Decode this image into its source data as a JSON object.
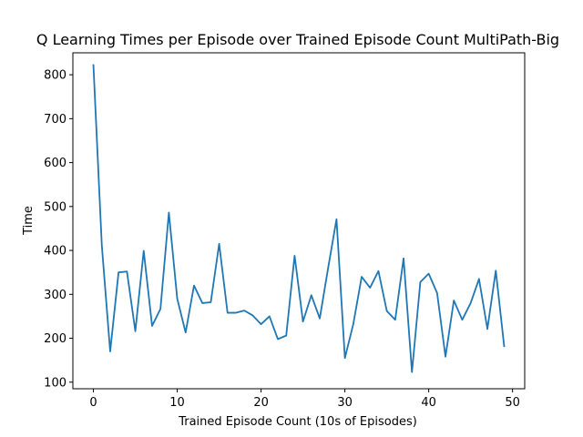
{
  "chart_data": {
    "type": "line",
    "title": "Q Learning Times per Episode over Trained Episode Count MultiPath-Big",
    "xlabel": "Trained Episode Count (10s of Episodes)",
    "ylabel": "Time",
    "xlim": [
      -2.45,
      51.45
    ],
    "ylim": [
      85,
      850
    ],
    "xticks": [
      0,
      10,
      20,
      30,
      40,
      50
    ],
    "yticks": [
      100,
      200,
      300,
      400,
      500,
      600,
      700,
      800
    ],
    "grid": false,
    "legend": "none",
    "series": [
      {
        "color": "#1f77b4",
        "x": [
          0,
          1,
          2,
          3,
          4,
          5,
          6,
          7,
          8,
          9,
          10,
          11,
          12,
          13,
          14,
          15,
          16,
          17,
          18,
          19,
          20,
          21,
          22,
          23,
          24,
          25,
          26,
          27,
          28,
          29,
          30,
          31,
          32,
          33,
          34,
          35,
          36,
          37,
          38,
          39,
          40,
          41,
          42,
          43,
          44,
          45,
          46,
          47,
          48,
          49
        ],
        "values": [
          822,
          412,
          170,
          350,
          352,
          216,
          399,
          228,
          267,
          486,
          290,
          213,
          320,
          280,
          282,
          415,
          258,
          258,
          263,
          252,
          232,
          250,
          198,
          206,
          388,
          238,
          298,
          245,
          360,
          471,
          155,
          232,
          340,
          315,
          353,
          262,
          242,
          382,
          123,
          328,
          347,
          303,
          158,
          286,
          242,
          280,
          335,
          221,
          354,
          182
        ]
      }
    ]
  }
}
